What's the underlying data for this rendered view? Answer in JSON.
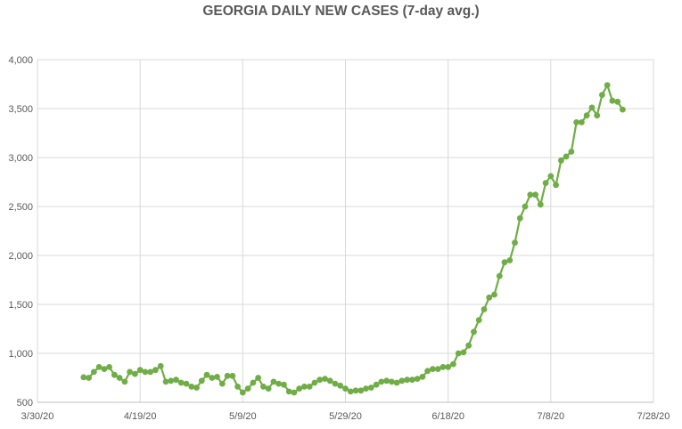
{
  "chart_data": {
    "type": "line",
    "title": "GEORGIA DAILY NEW CASES (7-day avg.)",
    "xlabel": "",
    "ylabel": "",
    "ylim": [
      500,
      4000
    ],
    "y_ticks": [
      500,
      1000,
      1500,
      2000,
      2500,
      3000,
      3500,
      4000
    ],
    "y_tick_labels": [
      "500",
      "1,000",
      "1,500",
      "2,000",
      "2,500",
      "3,000",
      "3,500",
      "4,000"
    ],
    "x_ticks": [
      "2020-03-30",
      "2020-04-19",
      "2020-05-09",
      "2020-05-29",
      "2020-06-18",
      "2020-07-08",
      "2020-07-28"
    ],
    "x_tick_labels": [
      "3/30/20",
      "4/19/20",
      "5/9/20",
      "5/29/20",
      "6/18/20",
      "7/8/20",
      "7/28/20"
    ],
    "grid": "vertical and horizontal",
    "legend": "none",
    "line_color": "#70AD47",
    "series": [
      {
        "start_date": "2020-04-08",
        "values": [
          755,
          750,
          810,
          860,
          840,
          860,
          780,
          750,
          710,
          810,
          790,
          830,
          810,
          810,
          830,
          870,
          710,
          720,
          730,
          700,
          690,
          660,
          650,
          720,
          780,
          750,
          760,
          690,
          770,
          770,
          660,
          600,
          640,
          700,
          750,
          660,
          640,
          710,
          690,
          680,
          610,
          600,
          640,
          660,
          660,
          700,
          730,
          740,
          720,
          690,
          670,
          640,
          610,
          620,
          620,
          640,
          650,
          680,
          710,
          720,
          710,
          700,
          720,
          730,
          730,
          740,
          760,
          820,
          840,
          840,
          860,
          860,
          890,
          1000,
          1010,
          1080,
          1220,
          1340,
          1450,
          1570,
          1600,
          1790,
          1930,
          1950,
          2130,
          2380,
          2500,
          2620,
          2620,
          2520,
          2740,
          2810,
          2720,
          2970,
          3010,
          3060,
          3360,
          3360,
          3430,
          3510,
          3430,
          3640,
          3740,
          3580,
          3570,
          3490
        ]
      }
    ]
  }
}
